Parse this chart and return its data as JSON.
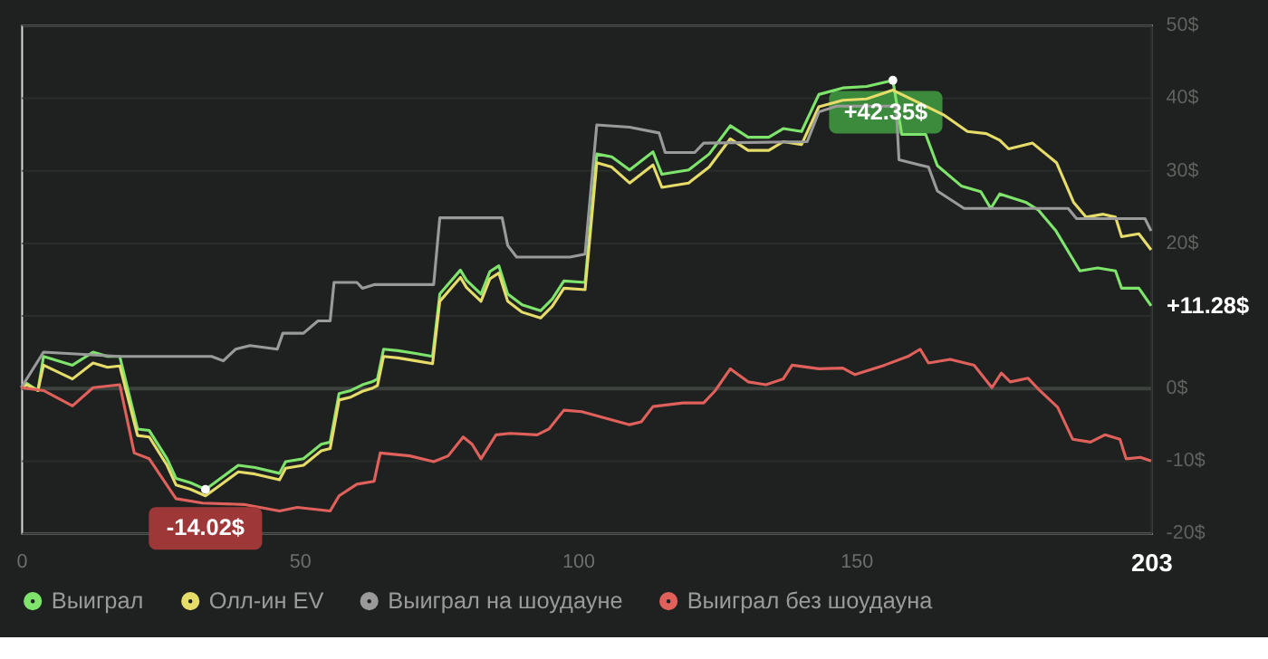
{
  "chart_data": {
    "type": "line",
    "xlim": [
      0,
      203
    ],
    "xticks": [
      0,
      50,
      100,
      150,
      203
    ],
    "ylim": [
      -20,
      50
    ],
    "yticks": [
      {
        "value": -20,
        "label": "-20$"
      },
      {
        "value": -10,
        "label": "-10$"
      },
      {
        "value": 0,
        "label": "0$"
      },
      {
        "value": 10,
        "label": null
      },
      {
        "value": 20,
        "label": "20$"
      },
      {
        "value": 30,
        "label": "30$"
      },
      {
        "value": 40,
        "label": "40$"
      },
      {
        "value": 50,
        "label": "50$"
      }
    ],
    "grid": "y",
    "legend": "bottom",
    "line_style": "solid",
    "marker": "none",
    "annotations": [
      {
        "text": "+42.35$",
        "x": 156.6,
        "y": 42.35
      },
      {
        "text": "-14.02$",
        "x": 33.1,
        "y": -14.02
      },
      {
        "text": "+11.28$",
        "x": 203,
        "y": 11.28
      }
    ],
    "series": [
      {
        "name": "Выиграл",
        "color": "#7fe46c",
        "x": [
          0,
          1,
          3,
          4,
          9.2,
          12.9,
          15.5,
          17.7,
          20.9,
          23,
          26.2,
          27.8,
          30.4,
          33.1,
          35.8,
          39,
          42,
          46.4,
          47.5,
          50.7,
          53.9,
          55.5,
          57.1,
          59.2,
          61.3,
          63,
          64,
          65.1,
          67.7,
          70.9,
          73.9,
          75.2,
          78.9,
          80,
          82.6,
          84.2,
          85.8,
          87.4,
          90,
          93.3,
          95.4,
          97.5,
          101.3,
          103.4,
          106.1,
          109.3,
          113.5,
          115.1,
          119.9,
          123.6,
          127.4,
          130.6,
          134.3,
          136.9,
          140.2,
          143.3,
          147.6,
          151.9,
          156.6,
          158.2,
          162.5,
          164.6,
          168.9,
          172.4,
          174.2,
          175.8,
          180.6,
          182.7,
          185.9,
          190.2,
          193.4,
          196.6,
          197.7,
          200.8,
          203
        ],
        "values": [
          0,
          0.6,
          -0.4,
          4.3,
          3.1,
          4.9,
          4.3,
          4.3,
          -5.7,
          -5.9,
          -9.8,
          -12.5,
          -13.1,
          -14.02,
          -12.5,
          -10.7,
          -11,
          -11.8,
          -10.2,
          -9.8,
          -7.8,
          -7.5,
          -0.8,
          -0.4,
          0.4,
          0.8,
          1.2,
          5.3,
          5.1,
          4.7,
          4.3,
          12.9,
          16.2,
          14.8,
          12.9,
          16,
          16.8,
          12.9,
          11.4,
          10.6,
          12.2,
          14.7,
          14.5,
          32.2,
          31.8,
          30,
          32.5,
          29.4,
          30,
          32.2,
          36.1,
          34.5,
          34.5,
          35.7,
          35.3,
          40.4,
          41.3,
          41.5,
          42.35,
          34.9,
          34.9,
          30.6,
          27.8,
          27,
          24.7,
          26.7,
          25.5,
          24.5,
          21.6,
          16.1,
          16.5,
          16.1,
          13.7,
          13.7,
          11.28
        ]
      },
      {
        "name": "Олл-ин EV",
        "color": "#e6dc6a",
        "x": [
          0,
          1,
          3,
          4,
          9.2,
          12.9,
          15.5,
          17.7,
          20.9,
          23,
          26.2,
          27.8,
          30.4,
          33.1,
          35.8,
          39,
          42,
          46.4,
          47.5,
          50.7,
          53.9,
          55.5,
          57.1,
          59.2,
          61.3,
          63,
          64,
          65.1,
          67.7,
          70.9,
          73.9,
          75.2,
          78.9,
          80,
          82.6,
          84.2,
          85.8,
          87.4,
          90,
          93.3,
          95.4,
          97.5,
          101.3,
          103.4,
          106.1,
          109.3,
          113.5,
          115.1,
          119.9,
          123.6,
          127.4,
          130.6,
          134.3,
          136.9,
          140.2,
          143.3,
          147.6,
          151.9,
          156.6,
          165.7,
          170,
          173.4,
          175.8,
          177.4,
          181.7,
          186,
          189.1,
          191.3,
          194.4,
          196.6,
          197.7,
          200.8,
          203
        ],
        "values": [
          0,
          0.4,
          -0.4,
          3.1,
          1.2,
          3.4,
          2.8,
          3,
          -6.6,
          -6.8,
          -10.7,
          -13.4,
          -14,
          -14.9,
          -13.4,
          -11.6,
          -11.9,
          -12.7,
          -11.1,
          -10.7,
          -8.7,
          -8.4,
          -1.7,
          -1.3,
          -0.5,
          -0.1,
          0.3,
          4.3,
          4.1,
          3.7,
          3.3,
          11.9,
          15.2,
          13.8,
          11.9,
          15,
          15.8,
          11.9,
          10.4,
          9.6,
          11.2,
          13.7,
          13.5,
          31,
          30.4,
          28.2,
          30.7,
          27.6,
          28.2,
          30.4,
          34.3,
          32.7,
          32.7,
          33.9,
          33.5,
          38.7,
          39.6,
          39.8,
          41,
          37.6,
          35.3,
          35,
          34.1,
          32.9,
          33.7,
          31,
          25.5,
          23.5,
          23.9,
          23.5,
          20.8,
          21.2,
          19
        ]
      },
      {
        "name": "Выиграл на шоудауне",
        "color": "#9a9a9a",
        "x": [
          0,
          4,
          17.7,
          34.2,
          36.3,
          38.5,
          41.1,
          46,
          47,
          50.7,
          53.3,
          55.5,
          56.2,
          60.3,
          61.3,
          63.4,
          74.1,
          75.2,
          86.4,
          87.4,
          89,
          98.6,
          101.3,
          103.4,
          109.3,
          114.6,
          115.7,
          121,
          122.6,
          141.2,
          143.3,
          146.5,
          157.2,
          157.7,
          163,
          164.6,
          169.4,
          188.1,
          189.6,
          201.9,
          203
        ],
        "values": [
          0,
          4.9,
          4.3,
          4.3,
          3.7,
          5.3,
          5.8,
          5.3,
          7.5,
          7.5,
          9.2,
          9.2,
          14.5,
          14.5,
          13.7,
          14.2,
          14.2,
          23.4,
          23.4,
          19.6,
          18,
          18,
          18.4,
          36.2,
          35.9,
          35.1,
          32.4,
          32.4,
          33.7,
          33.9,
          38,
          38.8,
          38.8,
          31.4,
          30.4,
          27.1,
          24.7,
          24.7,
          23.3,
          23.3,
          21.6
        ]
      },
      {
        "name": "Выиграл без шоудауна",
        "color": "#e0605c",
        "x": [
          0,
          4,
          9.2,
          12.9,
          17.7,
          20.3,
          23,
          25.7,
          27.8,
          32.6,
          40,
          46.4,
          49.6,
          55.5,
          57.1,
          60.3,
          63.4,
          64.5,
          69.8,
          74.1,
          76.7,
          79.4,
          81,
          82.6,
          85.3,
          87.9,
          92.7,
          94.8,
          97.5,
          100.7,
          109.3,
          111.4,
          113.5,
          118.9,
          122.6,
          124.7,
          127.4,
          130.6,
          133.8,
          136.9,
          138.5,
          143.3,
          147.6,
          149.8,
          155.1,
          159.3,
          161.5,
          163,
          166.9,
          171.2,
          174.4,
          176.1,
          177.7,
          180.9,
          183,
          186.2,
          188.9,
          192.1,
          194.7,
          197.4,
          198.5,
          201.1,
          203
        ],
        "values": [
          0,
          -0.4,
          -2.5,
          0,
          0.4,
          -9,
          -9.8,
          -12.9,
          -15.3,
          -15.9,
          -16.1,
          -17,
          -16.5,
          -17,
          -14.9,
          -13.3,
          -12.9,
          -9,
          -9.4,
          -10.2,
          -9.4,
          -6.8,
          -7.8,
          -9.8,
          -6.5,
          -6.3,
          -6.5,
          -5.7,
          -3.1,
          -3.3,
          -5.1,
          -4.7,
          -2.6,
          -2.1,
          -2.1,
          -0.4,
          2.6,
          0.8,
          0.4,
          1.2,
          3.1,
          2.6,
          2.7,
          1.8,
          3.1,
          4.3,
          5.3,
          3.4,
          3.9,
          3.1,
          0,
          2,
          0.8,
          1.3,
          -0.4,
          -2.7,
          -7.1,
          -7.5,
          -6.5,
          -7.1,
          -9.8,
          -9.6,
          -10.1
        ]
      }
    ]
  }
}
